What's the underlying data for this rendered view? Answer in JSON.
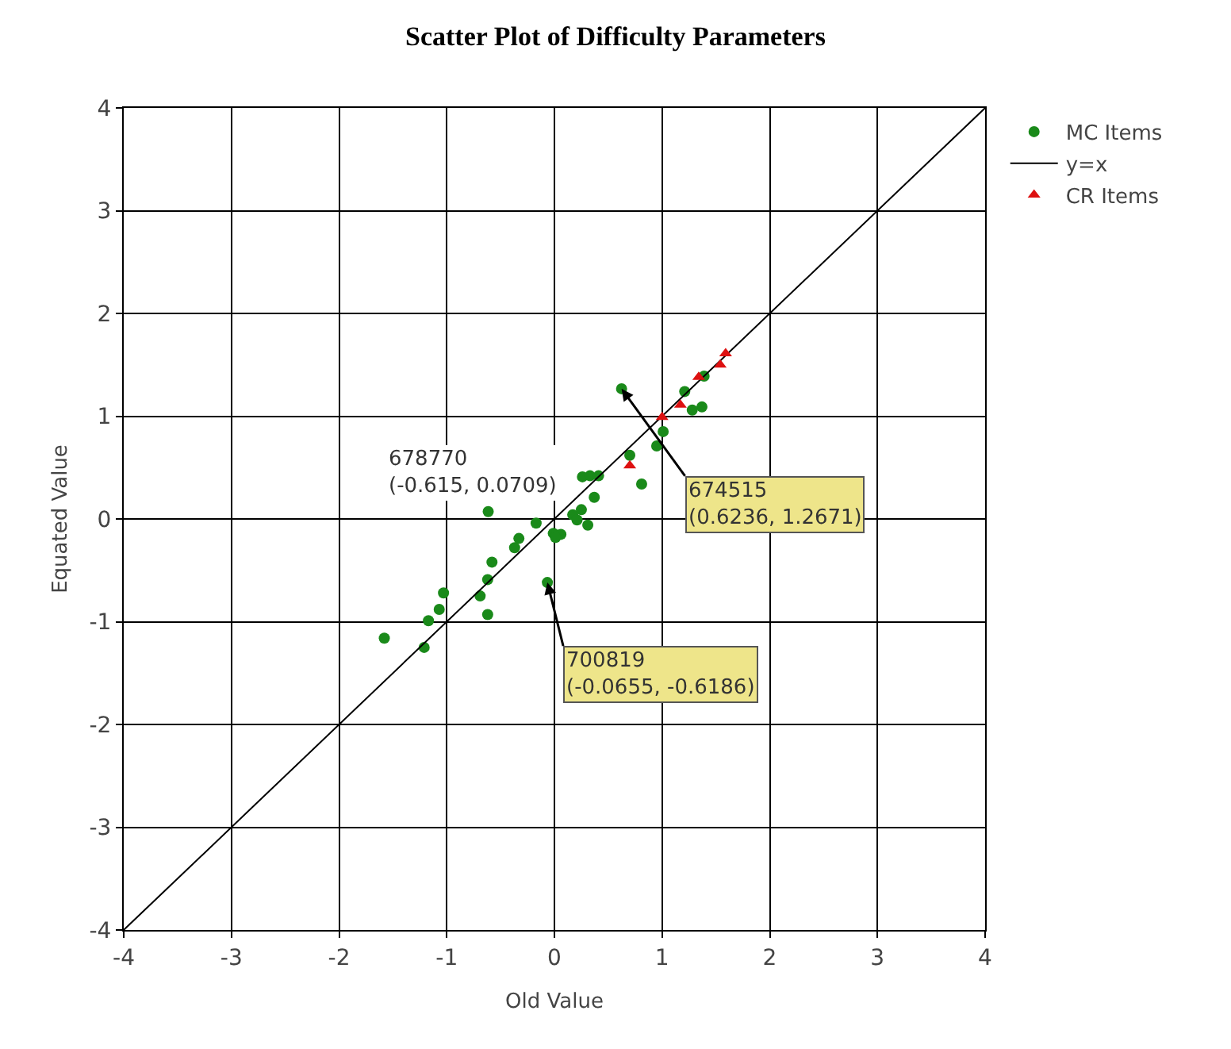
{
  "chart_data": {
    "type": "scatter",
    "title": "Scatter Plot of Difficulty Parameters",
    "xlabel": "Old Value",
    "ylabel": "Equated Value",
    "xlim": [
      -4,
      4
    ],
    "ylim": [
      -4,
      4
    ],
    "xticks": [
      -4,
      -3,
      -2,
      -1,
      0,
      1,
      2,
      3,
      4
    ],
    "yticks": [
      -4,
      -3,
      -2,
      -1,
      0,
      1,
      2,
      3,
      4
    ],
    "grid": true,
    "legend": "top right",
    "series": [
      {
        "name": "MC Items",
        "marker": "circle",
        "color": "#1a8a1a",
        "x": [
          0.6236,
          1.21,
          1.37,
          1.28,
          1.01,
          0.95,
          0.7,
          0.81,
          0.26,
          0.33,
          0.41,
          0.37,
          0.25,
          0.17,
          0.31,
          0.21,
          -0.615,
          -0.17,
          -0.01,
          0.06,
          0.01,
          -0.33,
          -0.37,
          -0.58,
          -0.62,
          -0.69,
          -0.62,
          -1.03,
          -1.07,
          -1.17,
          -1.21,
          -1.58,
          -0.0655,
          1.39
        ],
        "values": [
          1.2671,
          1.24,
          1.09,
          1.06,
          0.85,
          0.71,
          0.62,
          0.34,
          0.41,
          0.42,
          0.42,
          0.21,
          0.09,
          0.04,
          -0.06,
          -0.01,
          0.0709,
          -0.04,
          -0.14,
          -0.15,
          -0.18,
          -0.19,
          -0.28,
          -0.42,
          -0.59,
          -0.75,
          -0.93,
          -0.72,
          -0.88,
          -0.99,
          -1.25,
          -1.16,
          -0.6186,
          1.39
        ]
      },
      {
        "name": "y=x",
        "type": "line",
        "marker": "none",
        "line_style": "solid",
        "color": "#000000",
        "x": [
          -4,
          4
        ],
        "values": [
          -4,
          4
        ]
      },
      {
        "name": "CR Items",
        "marker": "triangle",
        "color": "#dd1111",
        "x": [
          0.7,
          1.0,
          1.17,
          1.34,
          1.54,
          1.59
        ],
        "values": [
          0.52,
          0.99,
          1.11,
          1.38,
          1.5,
          1.61
        ]
      }
    ],
    "annotations": [
      {
        "text": "678770\n(-0.615, 0.0709)",
        "x": -0.615,
        "y": 0.0709
      },
      {
        "text": "674515\n(0.6236, 1.2671)",
        "x": 0.6236,
        "y": 1.2671
      },
      {
        "text": "700819\n(-0.0655, -0.6186)",
        "x": -0.0655,
        "y": -0.6186
      }
    ]
  }
}
